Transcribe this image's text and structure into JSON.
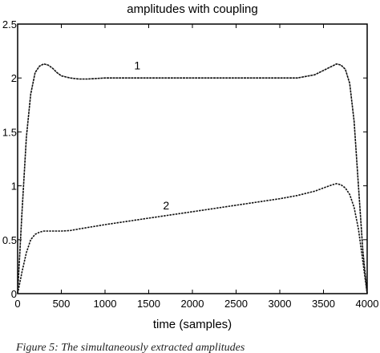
{
  "chart_data": {
    "type": "line",
    "title": "amplitudes with coupling",
    "xlabel": "time (samples)",
    "ylabel": "",
    "xlim": [
      0,
      4000
    ],
    "ylim": [
      0,
      2.5
    ],
    "xticks": [
      0,
      500,
      1000,
      1500,
      2000,
      2500,
      3000,
      3500,
      4000
    ],
    "yticks": [
      0,
      0.5,
      1,
      1.5,
      2,
      2.5
    ],
    "xtick_labels": [
      "0",
      "500",
      "1000",
      "1500",
      "2000",
      "2500",
      "3000",
      "3500",
      "4000"
    ],
    "ytick_labels": [
      "0",
      "0.5",
      "1",
      "1.5",
      "2",
      "2.5"
    ],
    "grid": false,
    "series": [
      {
        "name": "1",
        "label_at": [
          1370,
          2.08
        ],
        "x": [
          0,
          50,
          100,
          150,
          200,
          250,
          300,
          350,
          400,
          450,
          500,
          600,
          700,
          800,
          1000,
          1500,
          2000,
          2500,
          3000,
          3200,
          3400,
          3500,
          3600,
          3650,
          3700,
          3750,
          3800,
          3850,
          3900,
          3950,
          4000
        ],
        "y": [
          0.0,
          0.75,
          1.45,
          1.85,
          2.05,
          2.11,
          2.13,
          2.12,
          2.09,
          2.05,
          2.02,
          2.0,
          1.99,
          1.99,
          2.0,
          2.0,
          2.0,
          2.0,
          2.0,
          2.0,
          2.03,
          2.07,
          2.11,
          2.13,
          2.12,
          2.08,
          1.95,
          1.6,
          1.0,
          0.4,
          0.0
        ]
      },
      {
        "name": "2",
        "label_at": [
          1700,
          0.78
        ],
        "x": [
          0,
          50,
          100,
          150,
          200,
          250,
          300,
          400,
          500,
          600,
          700,
          1000,
          1500,
          2000,
          2500,
          3000,
          3200,
          3400,
          3500,
          3600,
          3650,
          3700,
          3750,
          3800,
          3850,
          3900,
          3950,
          4000
        ],
        "y": [
          0.0,
          0.2,
          0.38,
          0.5,
          0.55,
          0.57,
          0.58,
          0.58,
          0.58,
          0.585,
          0.6,
          0.64,
          0.7,
          0.76,
          0.82,
          0.88,
          0.91,
          0.95,
          0.98,
          1.01,
          1.02,
          1.01,
          0.98,
          0.92,
          0.8,
          0.6,
          0.3,
          0.0
        ]
      }
    ]
  },
  "caption": "Figure 5: The simultaneously extracted amplitudes"
}
